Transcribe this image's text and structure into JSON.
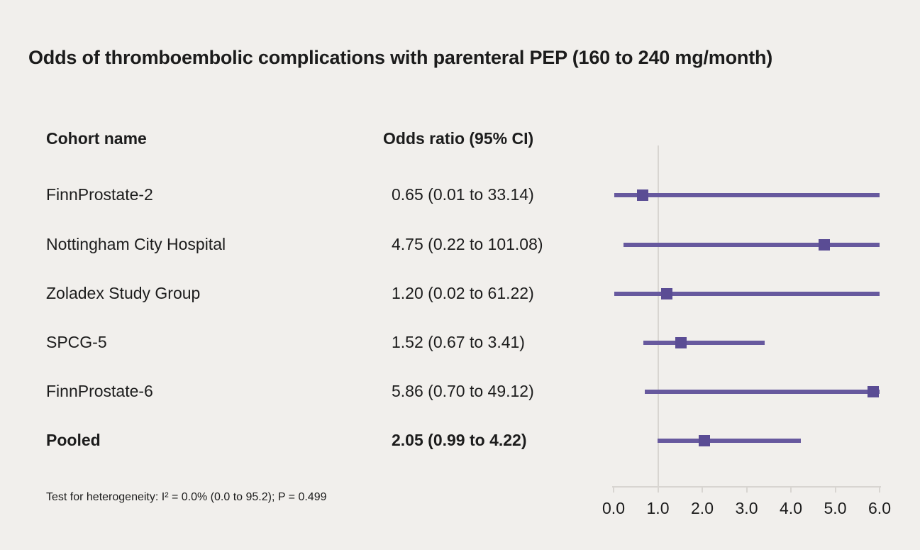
{
  "title": "Odds of thromboembolic complications with parenteral PEP (160 to 240 mg/month)",
  "columns": {
    "cohort": "Cohort name",
    "odds_ratio": "Odds ratio (95% CI)"
  },
  "footnote": "Test for heterogeneity: I² = 0.0% (0.0 to 95.2); P = 0.499",
  "colors": {
    "accent": "#67599e",
    "marker": "#5a4c94",
    "axis_line": "#d8d5d1",
    "background": "#f1efec",
    "text": "#1c1c1c"
  },
  "chart_data": {
    "type": "scatter",
    "subtype": "forest-plot",
    "title": "Odds of thromboembolic complications with parenteral PEP (160 to 240 mg/month)",
    "xlabel": "",
    "ylabel": "",
    "x_axis": {
      "min": 0,
      "max": 6,
      "ticks": [
        "0.0",
        "1.0",
        "2.0",
        "3.0",
        "4.0",
        "5.0",
        "6.0"
      ],
      "reference_line": 1.0
    },
    "rows": [
      {
        "cohort": "FinnProstate-2",
        "label": "0.65 (0.01 to 33.14)",
        "or": 0.65,
        "ci_low": 0.01,
        "ci_high": 33.14,
        "pooled": false
      },
      {
        "cohort": "Nottingham City Hospital",
        "label": "4.75 (0.22 to 101.08)",
        "or": 4.75,
        "ci_low": 0.22,
        "ci_high": 101.08,
        "pooled": false
      },
      {
        "cohort": "Zoladex Study Group",
        "label": "1.20 (0.02 to 61.22)",
        "or": 1.2,
        "ci_low": 0.02,
        "ci_high": 61.22,
        "pooled": false
      },
      {
        "cohort": "SPCG-5",
        "label": "1.52 (0.67 to 3.41)",
        "or": 1.52,
        "ci_low": 0.67,
        "ci_high": 3.41,
        "pooled": false
      },
      {
        "cohort": "FinnProstate-6",
        "label": "5.86 (0.70 to 49.12)",
        "or": 5.86,
        "ci_low": 0.7,
        "ci_high": 49.12,
        "pooled": false
      },
      {
        "cohort": "Pooled",
        "label": "2.05 (0.99 to 4.22)",
        "or": 2.05,
        "ci_low": 0.99,
        "ci_high": 4.22,
        "pooled": true
      }
    ]
  }
}
